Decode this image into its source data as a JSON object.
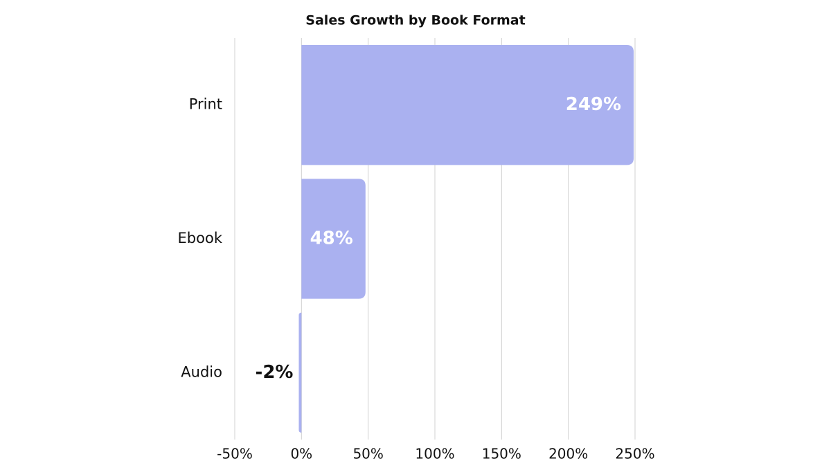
{
  "chart_data": {
    "type": "bar",
    "orientation": "horizontal",
    "title": "Sales Growth by Book Format",
    "categories": [
      "Print",
      "Ebook",
      "Audio"
    ],
    "values": [
      249,
      48,
      -2
    ],
    "value_labels": [
      "249%",
      "48%",
      "-2%"
    ],
    "color": "#aab1f0",
    "xlim": [
      -50,
      250
    ],
    "xticks": [
      {
        "value": -50,
        "label": "-50%"
      },
      {
        "value": 0,
        "label": "0%"
      },
      {
        "value": 50,
        "label": "50%"
      },
      {
        "value": 100,
        "label": "100%"
      },
      {
        "value": 150,
        "label": "150%"
      },
      {
        "value": 200,
        "label": "200%"
      },
      {
        "value": 250,
        "label": "250%"
      }
    ],
    "grid": true
  }
}
